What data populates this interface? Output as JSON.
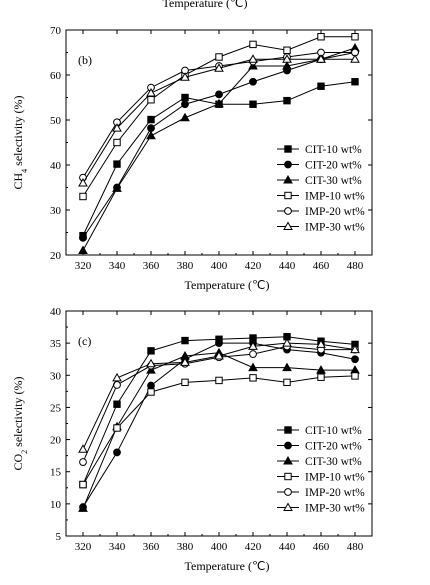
{
  "top_caption": "Temperature (℃)",
  "chart_data": [
    {
      "type": "line",
      "panel_label": "(b)",
      "xlabel": "Temperature (℃)",
      "ylabel_parts": [
        "CH",
        "4",
        " selectivity (%)"
      ],
      "xlim": [
        310,
        490
      ],
      "ylim": [
        20,
        70
      ],
      "xticks": [
        320,
        340,
        360,
        380,
        400,
        420,
        440,
        460,
        480
      ],
      "yticks": [
        20,
        30,
        40,
        50,
        60,
        70
      ],
      "legend_position": "lower-right",
      "series": [
        {
          "name": "CIT-10 wt%",
          "marker": "square",
          "filled": true,
          "x": [
            320,
            340,
            360,
            380,
            400,
            420,
            440,
            460,
            480
          ],
          "values": [
            24.3,
            40.2,
            50.1,
            55.0,
            53.5,
            53.5,
            54.3,
            57.5,
            58.5
          ]
        },
        {
          "name": "CIT-20 wt%",
          "marker": "circle",
          "filled": true,
          "x": [
            320,
            340,
            360,
            380,
            400,
            420,
            440,
            460,
            480
          ],
          "values": [
            23.8,
            35.0,
            48.2,
            53.5,
            55.7,
            58.5,
            61.0,
            63.5,
            65.0
          ]
        },
        {
          "name": "CIT-30 wt%",
          "marker": "triangle",
          "filled": true,
          "x": [
            320,
            340,
            360,
            380,
            400,
            420,
            440,
            460,
            480
          ],
          "values": [
            21.0,
            34.8,
            46.5,
            50.5,
            53.6,
            62.0,
            62.0,
            63.5,
            66.0
          ]
        },
        {
          "name": "IMP-10 wt%",
          "marker": "square",
          "filled": false,
          "x": [
            320,
            340,
            360,
            380,
            400,
            420,
            440,
            460,
            480
          ],
          "values": [
            33.0,
            45.0,
            54.5,
            60.0,
            64.0,
            66.8,
            65.5,
            68.5,
            68.5
          ]
        },
        {
          "name": "IMP-20 wt%",
          "marker": "circle",
          "filled": false,
          "x": [
            320,
            340,
            360,
            380,
            400,
            420,
            440,
            460,
            480
          ],
          "values": [
            37.2,
            49.5,
            57.2,
            61.0,
            62.0,
            63.0,
            64.0,
            65.0,
            65.0
          ]
        },
        {
          "name": "IMP-30 wt%",
          "marker": "triangle",
          "filled": false,
          "x": [
            320,
            340,
            360,
            380,
            400,
            420,
            440,
            460,
            480
          ],
          "values": [
            36.0,
            48.2,
            56.0,
            59.5,
            61.5,
            63.5,
            63.5,
            63.5,
            63.5
          ]
        }
      ]
    },
    {
      "type": "line",
      "panel_label": "(c)",
      "xlabel": "Temperature (℃)",
      "ylabel_parts": [
        "CO",
        "2",
        " selectivity (%)"
      ],
      "xlim": [
        310,
        490
      ],
      "ylim": [
        5,
        40
      ],
      "xticks": [
        320,
        340,
        360,
        380,
        400,
        420,
        440,
        460,
        480
      ],
      "yticks": [
        5,
        10,
        15,
        20,
        25,
        30,
        35,
        40
      ],
      "legend_position": "lower-right",
      "series": [
        {
          "name": "CIT-10 wt%",
          "marker": "square",
          "filled": true,
          "x": [
            320,
            340,
            360,
            380,
            400,
            420,
            440,
            460,
            480
          ],
          "values": [
            13.0,
            25.5,
            33.8,
            35.4,
            35.6,
            35.8,
            36.0,
            35.3,
            34.8
          ]
        },
        {
          "name": "CIT-20 wt%",
          "marker": "circle",
          "filled": true,
          "x": [
            320,
            340,
            360,
            380,
            400,
            420,
            440,
            460,
            480
          ],
          "values": [
            9.5,
            18.0,
            28.4,
            32.5,
            35.0,
            35.0,
            34.0,
            33.5,
            32.5
          ]
        },
        {
          "name": "CIT-30 wt%",
          "marker": "triangle",
          "filled": true,
          "x": [
            320,
            340,
            360,
            380,
            400,
            420,
            440,
            460,
            480
          ],
          "values": [
            9.3,
            22.0,
            30.8,
            33.0,
            33.5,
            31.2,
            31.2,
            30.8,
            30.8
          ]
        },
        {
          "name": "IMP-10 wt%",
          "marker": "square",
          "filled": false,
          "x": [
            320,
            340,
            360,
            380,
            400,
            420,
            440,
            460,
            480
          ],
          "values": [
            13.0,
            21.8,
            27.4,
            28.9,
            29.2,
            29.6,
            28.9,
            29.7,
            29.9
          ]
        },
        {
          "name": "IMP-20 wt%",
          "marker": "circle",
          "filled": false,
          "x": [
            320,
            340,
            360,
            380,
            400,
            420,
            440,
            460,
            480
          ],
          "values": [
            16.5,
            28.5,
            31.5,
            31.8,
            32.8,
            33.3,
            34.5,
            34.0,
            34.0
          ]
        },
        {
          "name": "IMP-30 wt%",
          "marker": "triangle",
          "filled": false,
          "x": [
            320,
            340,
            360,
            380,
            400,
            420,
            440,
            460,
            480
          ],
          "values": [
            18.5,
            29.6,
            31.8,
            32.0,
            33.0,
            34.5,
            35.0,
            34.8,
            34.0
          ]
        }
      ]
    }
  ]
}
